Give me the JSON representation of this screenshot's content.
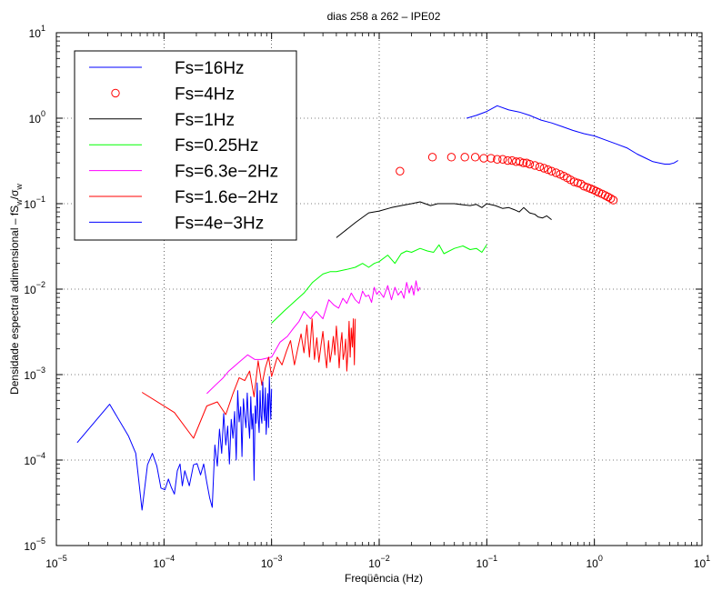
{
  "chart_data": {
    "type": "line",
    "title": "dias 258 a 262 – IPE02",
    "xlabel": "Freqüência (Hz)",
    "ylabel": {
      "prefix": "Densidade espectral adimensional – fS",
      "sub1": "w",
      "mid": "/σ",
      "sub2": "w"
    },
    "x_scale": "log",
    "y_scale": "log",
    "xlim": [
      1e-05,
      10
    ],
    "ylim": [
      1e-05,
      10
    ],
    "grid": true,
    "legend_position": "top-left",
    "x_ticks": [
      {
        "value": 1e-05,
        "base": "10",
        "exp": "−5"
      },
      {
        "value": 0.0001,
        "base": "10",
        "exp": "−4"
      },
      {
        "value": 0.001,
        "base": "10",
        "exp": "−3"
      },
      {
        "value": 0.01,
        "base": "10",
        "exp": "−2"
      },
      {
        "value": 0.1,
        "base": "10",
        "exp": "−1"
      },
      {
        "value": 1,
        "base": "10",
        "exp": "0"
      },
      {
        "value": 10,
        "base": "10",
        "exp": "1"
      }
    ],
    "y_ticks": [
      {
        "value": 1e-05,
        "base": "10",
        "exp": "−5"
      },
      {
        "value": 0.0001,
        "base": "10",
        "exp": "−4"
      },
      {
        "value": 0.001,
        "base": "10",
        "exp": "−3"
      },
      {
        "value": 0.01,
        "base": "10",
        "exp": "−2"
      },
      {
        "value": 0.1,
        "base": "10",
        "exp": "−1"
      },
      {
        "value": 1,
        "base": "10",
        "exp": "0"
      },
      {
        "value": 10,
        "base": "10",
        "exp": "1"
      }
    ],
    "series": [
      {
        "name": "Fs=16Hz",
        "style": "line",
        "color": "#0000ff",
        "x": [
          0.065,
          0.08,
          0.1,
          0.125,
          0.16,
          0.2,
          0.25,
          0.32,
          0.4,
          0.5,
          0.63,
          0.8,
          1.0,
          1.25,
          1.6,
          2.0,
          2.5,
          3.0,
          3.5,
          4.0,
          4.5,
          5.0,
          5.5,
          6.0
        ],
        "y": [
          1.0,
          1.08,
          1.2,
          1.4,
          1.25,
          1.18,
          1.08,
          0.95,
          0.88,
          0.8,
          0.72,
          0.66,
          0.62,
          0.56,
          0.5,
          0.45,
          0.38,
          0.34,
          0.31,
          0.3,
          0.29,
          0.29,
          0.3,
          0.32
        ]
      },
      {
        "name": "Fs=4Hz",
        "style": "marker",
        "color": "#ff0000",
        "x": [
          0.0156,
          0.03125,
          0.046875,
          0.0625,
          0.078125,
          0.09375,
          0.109375,
          0.125,
          0.140625,
          0.15625,
          0.171875,
          0.1875,
          0.203125,
          0.21875,
          0.234375,
          0.25,
          0.28,
          0.31,
          0.34,
          0.37,
          0.4,
          0.44,
          0.48,
          0.52,
          0.56,
          0.6,
          0.65,
          0.7,
          0.75,
          0.8,
          0.86,
          0.92,
          0.98,
          1.04,
          1.1,
          1.18,
          1.26,
          1.34,
          1.42,
          1.5
        ],
        "y": [
          0.24,
          0.35,
          0.35,
          0.35,
          0.35,
          0.34,
          0.34,
          0.33,
          0.33,
          0.32,
          0.32,
          0.31,
          0.31,
          0.3,
          0.3,
          0.29,
          0.28,
          0.27,
          0.26,
          0.25,
          0.24,
          0.23,
          0.22,
          0.21,
          0.2,
          0.19,
          0.18,
          0.175,
          0.17,
          0.16,
          0.155,
          0.15,
          0.145,
          0.14,
          0.135,
          0.13,
          0.125,
          0.12,
          0.115,
          0.11
        ]
      },
      {
        "name": "Fs=1Hz",
        "style": "line",
        "color": "#000000",
        "x": [
          0.004,
          0.006,
          0.008,
          0.01,
          0.013,
          0.016,
          0.02,
          0.024,
          0.03,
          0.035,
          0.04,
          0.05,
          0.06,
          0.07,
          0.08,
          0.09,
          0.1,
          0.12,
          0.14,
          0.16,
          0.18,
          0.2,
          0.22,
          0.25,
          0.28,
          0.3,
          0.33,
          0.36,
          0.4
        ],
        "y": [
          0.04,
          0.06,
          0.078,
          0.082,
          0.09,
          0.095,
          0.1,
          0.105,
          0.095,
          0.1,
          0.1,
          0.1,
          0.097,
          0.095,
          0.098,
          0.09,
          0.1,
          0.095,
          0.088,
          0.09,
          0.085,
          0.08,
          0.09,
          0.078,
          0.075,
          0.07,
          0.068,
          0.072,
          0.065
        ]
      },
      {
        "name": "Fs=0.25Hz",
        "style": "line",
        "color": "#00ff00",
        "x": [
          0.001,
          0.0013,
          0.0016,
          0.002,
          0.0024,
          0.003,
          0.0035,
          0.004,
          0.005,
          0.006,
          0.007,
          0.008,
          0.009,
          0.01,
          0.012,
          0.014,
          0.016,
          0.018,
          0.02,
          0.024,
          0.028,
          0.032,
          0.036,
          0.04,
          0.05,
          0.06,
          0.07,
          0.08,
          0.09,
          0.1
        ],
        "y": [
          0.004,
          0.0055,
          0.007,
          0.009,
          0.012,
          0.015,
          0.016,
          0.016,
          0.017,
          0.018,
          0.02,
          0.018,
          0.02,
          0.021,
          0.025,
          0.02,
          0.026,
          0.028,
          0.027,
          0.03,
          0.028,
          0.027,
          0.033,
          0.026,
          0.03,
          0.032,
          0.029,
          0.03,
          0.027,
          0.033
        ]
      },
      {
        "name": "Fs=6.3e−2Hz",
        "style": "line",
        "color": "#ff00ff",
        "x": [
          0.00025,
          0.0003,
          0.00035,
          0.0004,
          0.0005,
          0.0006,
          0.0007,
          0.0008,
          0.001,
          0.0012,
          0.0014,
          0.0016,
          0.0018,
          0.002,
          0.0023,
          0.0026,
          0.003,
          0.0034,
          0.0038,
          0.0042,
          0.0046,
          0.005,
          0.0055,
          0.006,
          0.0065,
          0.007,
          0.0075,
          0.008,
          0.0085,
          0.009,
          0.0095,
          0.01,
          0.011,
          0.012,
          0.013,
          0.014,
          0.015,
          0.016,
          0.017,
          0.018,
          0.019,
          0.02,
          0.021,
          0.022,
          0.023,
          0.024
        ],
        "y": [
          0.0006,
          0.00075,
          0.0009,
          0.0011,
          0.0014,
          0.0017,
          0.0015,
          0.0015,
          0.0016,
          0.0024,
          0.0028,
          0.0035,
          0.0042,
          0.0055,
          0.0045,
          0.0055,
          0.0045,
          0.0075,
          0.0065,
          0.006,
          0.0078,
          0.0068,
          0.009,
          0.0075,
          0.0068,
          0.0095,
          0.0082,
          0.0085,
          0.007,
          0.0105,
          0.0087,
          0.0095,
          0.008,
          0.011,
          0.0075,
          0.0105,
          0.0085,
          0.0095,
          0.0078,
          0.012,
          0.009,
          0.011,
          0.0085,
          0.0125,
          0.0095,
          0.0105
        ]
      },
      {
        "name": "Fs=1.6e−2Hz",
        "style": "line",
        "color": "#ff0000",
        "x": [
          6.25e-05,
          0.000125,
          0.000188,
          0.00025,
          0.000313,
          0.000375,
          0.000438,
          0.0005,
          0.000563,
          0.000625,
          0.000688,
          0.00075,
          0.000813,
          0.000875,
          0.000938,
          0.001,
          0.00113,
          0.00125,
          0.00138,
          0.0015,
          0.00163,
          0.00175,
          0.00188,
          0.002,
          0.00213,
          0.00225,
          0.00238,
          0.0025,
          0.00263,
          0.00275,
          0.00288,
          0.003,
          0.00313,
          0.00325,
          0.00338,
          0.0035,
          0.00363,
          0.00375,
          0.00388,
          0.004,
          0.00413,
          0.00425,
          0.00438,
          0.0045,
          0.00463,
          0.00475,
          0.00488,
          0.005,
          0.00513,
          0.00525,
          0.00538,
          0.0055,
          0.00563,
          0.00575,
          0.00588,
          0.006
        ],
        "y": [
          0.00062,
          0.00036,
          0.00018,
          0.00043,
          0.00048,
          0.00034,
          0.0006,
          0.00092,
          0.00085,
          0.0011,
          0.00055,
          0.00145,
          0.00075,
          0.0012,
          0.0016,
          0.00095,
          0.0016,
          0.0013,
          0.0019,
          0.0025,
          0.0013,
          0.002,
          0.003,
          0.0018,
          0.0038,
          0.0016,
          0.0045,
          0.0015,
          0.0027,
          0.0014,
          0.0022,
          0.0032,
          0.0018,
          0.0012,
          0.0025,
          0.0014,
          0.0019,
          0.0028,
          0.0017,
          0.0037,
          0.0022,
          0.0012,
          0.0023,
          0.0031,
          0.0015,
          0.0018,
          0.0026,
          0.0011,
          0.0019,
          0.0042,
          0.0016,
          0.0035,
          0.0021,
          0.0045,
          0.0013,
          0.0045
        ]
      },
      {
        "name": "Fs=4e−3Hz",
        "style": "line",
        "color": "#0000ff",
        "x": [
          1.56e-05,
          3.13e-05,
          4.69e-05,
          5.47e-05,
          6.25e-05,
          7.03e-05,
          7.81e-05,
          8.59e-05,
          9.38e-05,
          0.000102,
          0.00011,
          0.000117,
          0.000125,
          0.000133,
          0.000141,
          0.000148,
          0.000156,
          0.000172,
          0.000188,
          0.000203,
          0.000219,
          0.000234,
          0.00025,
          0.000266,
          0.000281,
          0.000297,
          0.000313,
          0.000328,
          0.000344,
          0.000359,
          0.000375,
          0.000391,
          0.000406,
          0.000422,
          0.000438,
          0.000453,
          0.000469,
          0.000484,
          0.0005,
          0.000516,
          0.000531,
          0.000547,
          0.000563,
          0.000578,
          0.000594,
          0.000609,
          0.000625,
          0.000641,
          0.000656,
          0.000672,
          0.000688,
          0.000703,
          0.000719,
          0.000734,
          0.00075,
          0.000766,
          0.000781,
          0.000797,
          0.000813,
          0.000828,
          0.000844,
          0.000859,
          0.000875,
          0.000891,
          0.000906,
          0.000922,
          0.000938,
          0.000953,
          0.000969,
          0.000984,
          0.001
        ],
        "y": [
          0.00016,
          0.00045,
          0.00019,
          0.00012,
          2.6e-05,
          8.8e-05,
          0.00012,
          8.5e-05,
          4.7e-05,
          4.5e-05,
          6e-05,
          4.8e-05,
          4e-05,
          7.5e-05,
          9e-05,
          5e-05,
          7.5e-05,
          5e-05,
          8.8e-05,
          9.1e-05,
          6.7e-05,
          9e-05,
          5.5e-05,
          3.6e-05,
          2.8e-05,
          0.00015,
          8.5e-05,
          0.00023,
          0.00012,
          0.00035,
          0.00015,
          0.00025,
          9e-05,
          0.0003,
          0.00018,
          0.00037,
          0.0001,
          0.00065,
          0.00028,
          0.00042,
          0.00011,
          0.00052,
          0.00033,
          0.00024,
          0.00061,
          0.00029,
          0.00018,
          0.00055,
          0.00023,
          0.00035,
          5.8e-05,
          0.00043,
          0.00027,
          0.0008,
          0.00031,
          0.00021,
          0.00065,
          0.00033,
          0.00027,
          0.00082,
          0.0004,
          0.00029,
          0.0007,
          0.0002,
          0.00033,
          0.0006,
          0.00024,
          0.00095,
          0.00052,
          0.0003,
          0.00068
        ]
      }
    ]
  }
}
